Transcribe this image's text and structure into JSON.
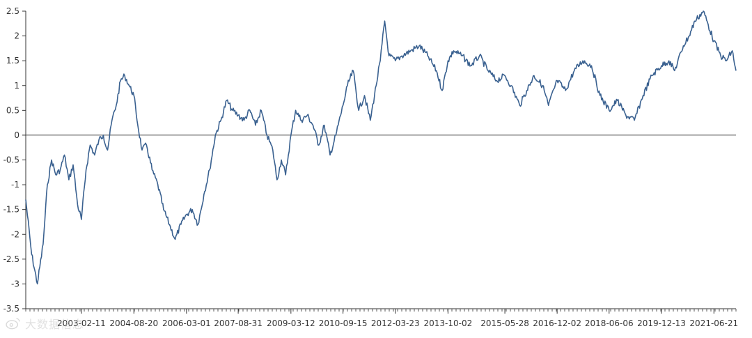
{
  "chart_data": {
    "type": "line",
    "title": "",
    "xlabel": "",
    "ylabel": "",
    "ylim": [
      -3.5,
      2.5
    ],
    "yticks": [
      -3.5,
      -3,
      -2.5,
      -2,
      -1.5,
      -1,
      -0.5,
      0,
      0.5,
      1,
      1.5,
      2,
      2.5
    ],
    "ytick_labels": [
      "-3.5",
      "-3",
      "-2.5",
      "-2",
      "-1.5",
      "-1",
      "-0.5",
      "0",
      "0.5",
      "1",
      "1.5",
      "2",
      "2.5"
    ],
    "xlim": [
      "2001-07-01",
      "2022-02-10"
    ],
    "xtick_labels": [
      "2003-02-11",
      "2004-08-20",
      "2006-03-01",
      "2007-08-31",
      "2009-03-12",
      "2010-09-15",
      "2012-03-23",
      "2013-10-02",
      "2015-05-28",
      "2016-12-02",
      "2018-06-06",
      "2019-12-13",
      "2021-06-21"
    ],
    "grid": false,
    "reference_line_y": 0,
    "line_color": "#3a6190",
    "series": [
      {
        "x": [
          "2001-07-01",
          "2001-09-01",
          "2001-11-01",
          "2002-01-01",
          "2002-02-15",
          "2002-04-01",
          "2002-05-15",
          "2002-07-01",
          "2002-08-15",
          "2002-10-01",
          "2002-11-15",
          "2003-01-01",
          "2003-02-11",
          "2003-04-01",
          "2003-05-15",
          "2003-07-01",
          "2003-08-15",
          "2003-10-01",
          "2003-11-15",
          "2004-01-01",
          "2004-02-15",
          "2004-04-01",
          "2004-05-15",
          "2004-07-01",
          "2004-08-20",
          "2004-10-01",
          "2004-11-15",
          "2005-01-01",
          "2005-03-01",
          "2005-05-01",
          "2005-07-01",
          "2005-09-01",
          "2005-11-01",
          "2006-01-01",
          "2006-03-01",
          "2006-05-01",
          "2006-07-01",
          "2006-09-01",
          "2006-11-01",
          "2007-01-01",
          "2007-03-01",
          "2007-05-01",
          "2007-07-01",
          "2007-08-31",
          "2007-11-01",
          "2008-01-01",
          "2008-03-01",
          "2008-05-01",
          "2008-07-01",
          "2008-09-01",
          "2008-10-15",
          "2008-12-01",
          "2009-01-15",
          "2009-03-12",
          "2009-05-01",
          "2009-07-01",
          "2009-09-01",
          "2009-11-01",
          "2010-01-01",
          "2010-03-01",
          "2010-05-01",
          "2010-07-01",
          "2010-09-15",
          "2010-11-01",
          "2011-01-01",
          "2011-03-01",
          "2011-05-01",
          "2011-07-01",
          "2011-09-01",
          "2011-10-15",
          "2011-12-01",
          "2012-01-15",
          "2012-03-23",
          "2012-06-01",
          "2012-09-01",
          "2012-12-01",
          "2013-03-01",
          "2013-06-01",
          "2013-08-01",
          "2013-10-02",
          "2013-12-01",
          "2014-03-01",
          "2014-06-01",
          "2014-09-01",
          "2014-12-01",
          "2015-03-01",
          "2015-05-28",
          "2015-08-01",
          "2015-11-01",
          "2016-01-15",
          "2016-04-01",
          "2016-07-01",
          "2016-09-01",
          "2016-12-02",
          "2017-03-01",
          "2017-06-01",
          "2017-09-01",
          "2017-12-01",
          "2018-03-01",
          "2018-06-06",
          "2018-09-01",
          "2018-12-01",
          "2019-03-01",
          "2019-06-01",
          "2019-09-01",
          "2019-12-13",
          "2020-03-01",
          "2020-05-01",
          "2020-08-01",
          "2020-10-01",
          "2020-12-01",
          "2021-03-01",
          "2021-06-21",
          "2021-09-01",
          "2021-11-01",
          "2022-01-01",
          "2022-02-10"
        ],
        "values": [
          -1.3,
          -2.4,
          -3.0,
          -2.2,
          -1.0,
          -0.5,
          -0.8,
          -0.7,
          -0.4,
          -0.9,
          -0.6,
          -1.4,
          -1.7,
          -0.7,
          -0.2,
          -0.4,
          -0.1,
          0.0,
          -0.3,
          0.3,
          0.6,
          1.1,
          1.2,
          1.0,
          0.8,
          0.2,
          -0.3,
          -0.2,
          -0.7,
          -1.0,
          -1.5,
          -1.8,
          -2.1,
          -1.8,
          -1.6,
          -1.5,
          -1.8,
          -1.2,
          -0.7,
          0.0,
          0.3,
          0.7,
          0.5,
          0.4,
          0.3,
          0.5,
          0.2,
          0.5,
          0.0,
          -0.3,
          -0.9,
          -0.5,
          -0.8,
          0.0,
          0.5,
          0.3,
          0.4,
          0.2,
          -0.2,
          0.2,
          -0.4,
          0.0,
          0.6,
          1.0,
          1.3,
          0.5,
          0.8,
          0.3,
          1.0,
          1.5,
          2.3,
          1.6,
          1.5,
          1.6,
          1.7,
          1.8,
          1.6,
          1.3,
          0.9,
          1.5,
          1.7,
          1.6,
          1.4,
          1.6,
          1.3,
          1.1,
          1.2,
          1.0,
          0.6,
          0.9,
          1.2,
          1.0,
          0.6,
          1.1,
          0.9,
          1.3,
          1.5,
          1.4,
          0.8,
          0.5,
          0.7,
          0.4,
          0.3,
          0.8,
          1.2,
          1.4,
          1.5,
          1.3,
          1.8,
          2.0,
          2.3,
          2.5,
          1.9,
          1.6,
          1.5,
          1.7,
          1.3
        ]
      }
    ]
  },
  "watermark": {
    "text": "大数据信息"
  }
}
